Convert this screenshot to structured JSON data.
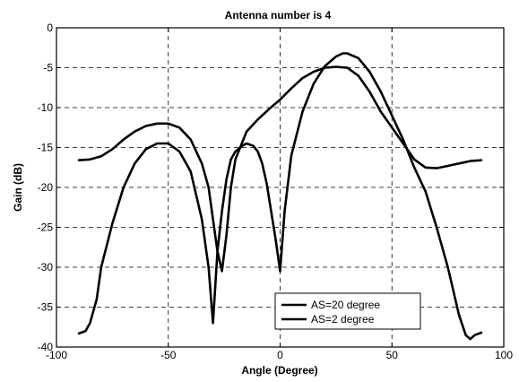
{
  "chart_data": {
    "type": "line",
    "title": "Antenna number is 4",
    "xlabel": "Angle (Degree)",
    "ylabel": "Gain (dB)",
    "xlim": [
      -100,
      100
    ],
    "ylim": [
      -40,
      0
    ],
    "xticks": [
      -100,
      -50,
      0,
      50,
      100
    ],
    "yticks": [
      0,
      -5,
      -10,
      -15,
      -20,
      -25,
      -30,
      -35,
      -40
    ],
    "grid": true,
    "legend_position": "bottom-right",
    "line_color": "#000000",
    "series": [
      {
        "name": "AS=20 degree",
        "x": [
          -90,
          -85,
          -80,
          -75,
          -70,
          -65,
          -60,
          -55,
          -50,
          -45,
          -40,
          -35,
          -32,
          -30,
          -28,
          -26,
          -24,
          -22,
          -20,
          -15,
          -10,
          -5,
          0,
          5,
          10,
          15,
          20,
          25,
          30,
          35,
          40,
          45,
          50,
          55,
          60,
          65,
          70,
          75,
          80,
          85,
          90
        ],
        "y": [
          -16.6,
          -16.5,
          -16.1,
          -15.2,
          -14.0,
          -13.0,
          -12.3,
          -12.0,
          -12.0,
          -12.5,
          -14.0,
          -17.0,
          -20.0,
          -24.0,
          -28.0,
          -30.5,
          -26.0,
          -20.0,
          -16.5,
          -13.0,
          -11.5,
          -10.2,
          -9.0,
          -7.6,
          -6.3,
          -5.5,
          -5.0,
          -4.9,
          -5.0,
          -6.0,
          -8.0,
          -10.5,
          -12.5,
          -14.5,
          -16.5,
          -17.5,
          -17.6,
          -17.3,
          -17.0,
          -16.7,
          -16.6
        ]
      },
      {
        "name": "AS=2 degree",
        "x": [
          -90,
          -87,
          -85,
          -82,
          -80,
          -75,
          -70,
          -65,
          -60,
          -55,
          -50,
          -45,
          -40,
          -35,
          -32,
          -30,
          -28,
          -26,
          -24,
          -22,
          -20,
          -17,
          -15,
          -12,
          -10,
          -8,
          -6,
          -4,
          -2,
          0,
          2,
          5,
          10,
          15,
          20,
          25,
          28,
          30,
          35,
          40,
          45,
          50,
          55,
          60,
          65,
          70,
          75,
          80,
          83,
          85,
          87,
          90
        ],
        "y": [
          -38.3,
          -38.0,
          -37.0,
          -34.0,
          -30.0,
          -24.5,
          -20.0,
          -17.0,
          -15.2,
          -14.5,
          -14.5,
          -15.5,
          -18.0,
          -24.0,
          -30.0,
          -37.0,
          -28.0,
          -23.0,
          -19.0,
          -16.5,
          -15.5,
          -14.8,
          -14.5,
          -14.8,
          -15.5,
          -17.0,
          -19.5,
          -23.0,
          -26.5,
          -30.5,
          -23.0,
          -16.0,
          -10.5,
          -7.0,
          -4.8,
          -3.6,
          -3.2,
          -3.2,
          -3.8,
          -5.5,
          -8.0,
          -11.0,
          -14.0,
          -17.5,
          -20.5,
          -25.0,
          -30.0,
          -36.0,
          -38.5,
          -39.0,
          -38.5,
          -38.2
        ]
      }
    ]
  }
}
